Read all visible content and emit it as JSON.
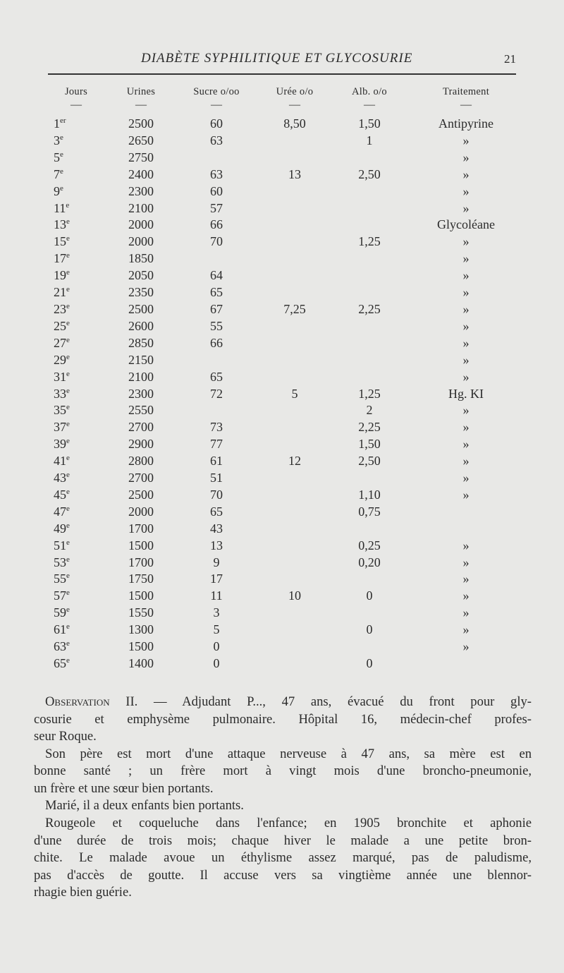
{
  "header": {
    "title": "DIABÈTE SYPHILITIQUE ET GLYCOSURIE",
    "page_number": "21"
  },
  "table": {
    "columns": [
      "Jours",
      "Urines",
      "Sucre o/oo",
      "Urée o/o",
      "Alb. o/o",
      "Traitement"
    ],
    "dash": "—",
    "rows": [
      {
        "day": "1",
        "sup": "er",
        "urines": "2500",
        "sucre": "60",
        "uree": "8,50",
        "alb": "1,50",
        "traitement": "Antipyrine"
      },
      {
        "day": "3",
        "sup": "e",
        "urines": "2650",
        "sucre": "63",
        "uree": "",
        "alb": "1",
        "traitement": "»"
      },
      {
        "day": "5",
        "sup": "e",
        "urines": "2750",
        "sucre": "",
        "uree": "",
        "alb": "",
        "traitement": "»"
      },
      {
        "day": "7",
        "sup": "e",
        "urines": "2400",
        "sucre": "63",
        "uree": "13",
        "alb": "2,50",
        "traitement": "»"
      },
      {
        "day": "9",
        "sup": "e",
        "urines": "2300",
        "sucre": "60",
        "uree": "",
        "alb": "",
        "traitement": "»"
      },
      {
        "day": "11",
        "sup": "e",
        "urines": "2100",
        "sucre": "57",
        "uree": "",
        "alb": "",
        "traitement": "»"
      },
      {
        "day": "13",
        "sup": "e",
        "urines": "2000",
        "sucre": "66",
        "uree": "",
        "alb": "",
        "traitement": "Glycoléane"
      },
      {
        "day": "15",
        "sup": "e",
        "urines": "2000",
        "sucre": "70",
        "uree": "",
        "alb": "1,25",
        "traitement": "»"
      },
      {
        "day": "17",
        "sup": "e",
        "urines": "1850",
        "sucre": "",
        "uree": "",
        "alb": "",
        "traitement": "»"
      },
      {
        "day": "19",
        "sup": "e",
        "urines": "2050",
        "sucre": "64",
        "uree": "",
        "alb": "",
        "traitement": "»"
      },
      {
        "day": "21",
        "sup": "e",
        "urines": "2350",
        "sucre": "65",
        "uree": "",
        "alb": "",
        "traitement": "»"
      },
      {
        "day": "23",
        "sup": "e",
        "urines": "2500",
        "sucre": "67",
        "uree": "7,25",
        "alb": "2,25",
        "traitement": "»"
      },
      {
        "day": "25",
        "sup": "e",
        "urines": "2600",
        "sucre": "55",
        "uree": "",
        "alb": "",
        "traitement": "»"
      },
      {
        "day": "27",
        "sup": "e",
        "urines": "2850",
        "sucre": "66",
        "uree": "",
        "alb": "",
        "traitement": "»"
      },
      {
        "day": "29",
        "sup": "e",
        "urines": "2150",
        "sucre": "",
        "uree": "",
        "alb": "",
        "traitement": "»"
      },
      {
        "day": "31",
        "sup": "e",
        "urines": "2100",
        "sucre": "65",
        "uree": "",
        "alb": "",
        "traitement": "»"
      },
      {
        "day": "33",
        "sup": "e",
        "urines": "2300",
        "sucre": "72",
        "uree": "5",
        "alb": "1,25",
        "traitement": "Hg. KI"
      },
      {
        "day": "35",
        "sup": "e",
        "urines": "2550",
        "sucre": "",
        "uree": "",
        "alb": "2",
        "traitement": "»"
      },
      {
        "day": "37",
        "sup": "e",
        "urines": "2700",
        "sucre": "73",
        "uree": "",
        "alb": "2,25",
        "traitement": "»"
      },
      {
        "day": "39",
        "sup": "e",
        "urines": "2900",
        "sucre": "77",
        "uree": "",
        "alb": "1,50",
        "traitement": "»"
      },
      {
        "day": "41",
        "sup": "e",
        "urines": "2800",
        "sucre": "61",
        "uree": "12",
        "alb": "2,50",
        "traitement": "»"
      },
      {
        "day": "43",
        "sup": "e",
        "urines": "2700",
        "sucre": "51",
        "uree": "",
        "alb": "",
        "traitement": "»"
      },
      {
        "day": "45",
        "sup": "e",
        "urines": "2500",
        "sucre": "70",
        "uree": "",
        "alb": "1,10",
        "traitement": "»"
      },
      {
        "day": "47",
        "sup": "e",
        "urines": "2000",
        "sucre": "65",
        "uree": "",
        "alb": "0,75",
        "traitement": ""
      },
      {
        "day": "49",
        "sup": "e",
        "urines": "1700",
        "sucre": "43",
        "uree": "",
        "alb": "",
        "traitement": ""
      },
      {
        "day": "51",
        "sup": "e",
        "urines": "1500",
        "sucre": "13",
        "uree": "",
        "alb": "0,25",
        "traitement": "»"
      },
      {
        "day": "53",
        "sup": "e",
        "urines": "1700",
        "sucre": "9",
        "uree": "",
        "alb": "0,20",
        "traitement": "»"
      },
      {
        "day": "55",
        "sup": "e",
        "urines": "1750",
        "sucre": "17",
        "uree": "",
        "alb": "",
        "traitement": "»"
      },
      {
        "day": "57",
        "sup": "e",
        "urines": "1500",
        "sucre": "11",
        "uree": "10",
        "alb": "0",
        "traitement": "»"
      },
      {
        "day": "59",
        "sup": "e",
        "urines": "1550",
        "sucre": "3",
        "uree": "",
        "alb": "",
        "traitement": "»"
      },
      {
        "day": "61",
        "sup": "e",
        "urines": "1300",
        "sucre": "5",
        "uree": "",
        "alb": "0",
        "traitement": "»"
      },
      {
        "day": "63",
        "sup": "e",
        "urines": "1500",
        "sucre": "0",
        "uree": "",
        "alb": "",
        "traitement": "»"
      },
      {
        "day": "65",
        "sup": "e",
        "urines": "1400",
        "sucre": "0",
        "uree": "",
        "alb": "0",
        "traitement": ""
      }
    ]
  },
  "body": {
    "observation_label": "Observation",
    "paragraphs": [
      {
        "indent": true,
        "lines": [
          " II. — Adjudant P..., 47 ans, évacué du front pour gly-",
          "cosurie et emphysème pulmonaire. Hôpital 16, médecin-chef profes-",
          "seur Roque."
        ]
      },
      {
        "indent": true,
        "lines": [
          "Son père est mort d'une attaque nerveuse à 47 ans, sa mère est en",
          "bonne santé ; un frère mort à vingt mois d'une broncho-pneumonie,",
          "un frère et une sœur bien portants."
        ]
      },
      {
        "indent": true,
        "lines": [
          "Marié, il a deux enfants bien portants."
        ]
      },
      {
        "indent": true,
        "lines": [
          "Rougeole et coqueluche dans l'enfance; en 1905 bronchite et aphonie",
          "d'une durée de trois mois; chaque hiver le malade a une petite bron-",
          "chite. Le malade avoue un éthylisme assez marqué, pas de paludisme,",
          "pas d'accès de goutte. Il accuse vers sa vingtième année une blennor-",
          "rhagie bien guérie."
        ]
      }
    ]
  }
}
